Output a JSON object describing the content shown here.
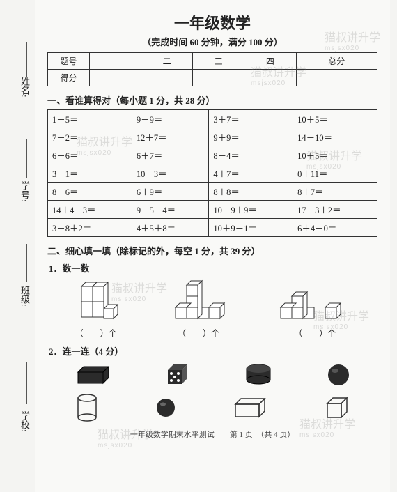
{
  "side": {
    "labels": [
      "姓名:",
      "学号:",
      "班级:",
      "学校:"
    ]
  },
  "title": "一年级数学",
  "subtitle": "（完成时间 60 分钟，满分 100 分）",
  "score_table": {
    "row1": [
      "题号",
      "一",
      "二",
      "三",
      "四",
      "总分"
    ],
    "row2": [
      "得分",
      "",
      "",
      "",
      "",
      ""
    ]
  },
  "section1": {
    "heading": "一、看谁算得对（每小题 1 分，共 28 分）",
    "rows": [
      [
        "1＋5＝",
        "9－9＝",
        "3＋7＝",
        "10＋5＝"
      ],
      [
        "7－2＝",
        "12＋7＝",
        "9＋9＝",
        "14－10＝"
      ],
      [
        "6＋6＝",
        "6＋7＝",
        "8－4＝",
        "10＋5＝"
      ],
      [
        "3－1＝",
        "10－3＝",
        "4＋7＝",
        "0＋11＝"
      ],
      [
        "8－6＝",
        "6＋9＝",
        "8＋8＝",
        "8＋7＝"
      ],
      [
        "14＋4－3＝",
        "9－5－4＝",
        "10－9＋9＝",
        "17－3＋2＝"
      ],
      [
        "3＋8＋2＝",
        "4＋5＋8＝",
        "10＋9－1＝",
        "6＋4－0＝"
      ]
    ]
  },
  "section2": {
    "heading": "二、细心填一填（除标记的外，每空 1 分，共 39 分）",
    "q1_label": "1．数一数",
    "count_caption": "（　　）个",
    "q2_label": "2．连一连（4 分）"
  },
  "footer": "一年级数学期末水平测试　　第 1 页　（共 4 页）",
  "watermark": {
    "text": "猫叔讲升学",
    "sub": "msjsx020"
  },
  "colors": {
    "page_bg": "#f9f9f7",
    "body_bg": "#f4f4f2",
    "text": "#222222",
    "border": "#333333",
    "wm": "rgba(120,120,120,0.22)",
    "shape_dark": "#2b2b2b",
    "shape_line": "#333333"
  }
}
